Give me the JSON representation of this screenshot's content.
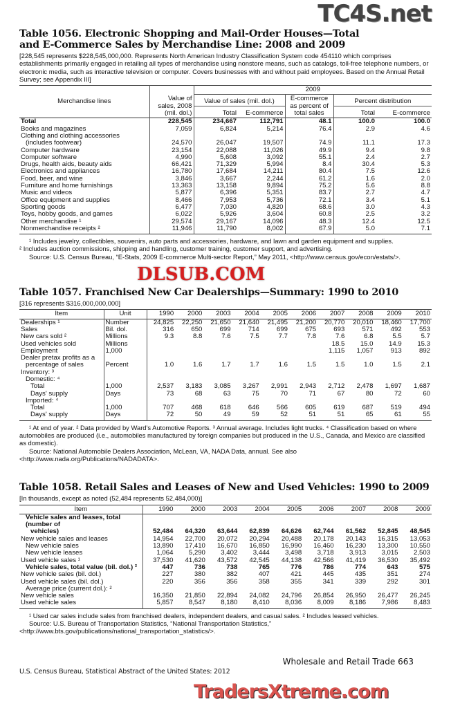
{
  "watermarks": {
    "top": "TC4S.net",
    "middle": "DLSUB.COM",
    "bottom": "TradersXtreme.com"
  },
  "t1056": {
    "title": "Table 1056. Electronic Shopping and Mail-Order Houses—Total and E-Commerce Sales by Merchandise Line: 2008 and 2009",
    "headnote": "[228,545 represents $228,545,000,000. Represents North American Industry Classification System code 454110 which comprises establishments primarily engaged in retailing all types of merchandise using nonstore means, such as catalogs, toll-free telephone numbers, or electronic media, such as interactive television or computer. Covers businesses with and without paid employees. Based on the Annual Retail Survey; see Appendix III]",
    "headers": {
      "lines": "Merchandise lines",
      "value2008": "Value of sales, 2008 (mil. dol.)",
      "year": "2009",
      "valueSales": "Value of sales (mil. dol.)",
      "ecomPct": "E-commerce as percent of total sales",
      "pctDist": "Percent distribution",
      "total": "Total",
      "ecom": "E-commerce",
      "total2": "Total",
      "ecom2": "E-commerce"
    },
    "rows": [
      {
        "label": "Total",
        "bold": true,
        "cells": [
          "228,545",
          "234,667",
          "112,791",
          "48.1",
          "100.0",
          "100.0"
        ]
      },
      {
        "label": "Books and magazines",
        "cells": [
          "7,059",
          "6,824",
          "5,214",
          "76.4",
          "2.9",
          "4.6"
        ]
      },
      {
        "label": "Clothing and clothing accessories",
        "nodots": true,
        "cells": []
      },
      {
        "label": "(includes footwear)",
        "indent": 1,
        "cells": [
          "24,570",
          "26,047",
          "19,507",
          "74.9",
          "11.1",
          "17.3"
        ]
      },
      {
        "label": "Computer hardware",
        "cells": [
          "23,154",
          "22,088",
          "11,026",
          "49.9",
          "9.4",
          "9.8"
        ]
      },
      {
        "label": "Computer software",
        "cells": [
          "4,990",
          "5,608",
          "3,092",
          "55.1",
          "2.4",
          "2.7"
        ]
      },
      {
        "label": "Drugs, health aids, beauty aids",
        "cells": [
          "66,421",
          "71,329",
          "5,994",
          "8.4",
          "30.4",
          "5.3"
        ]
      },
      {
        "label": "Electronics and appliances",
        "cells": [
          "16,780",
          "17,684",
          "14,211",
          "80.4",
          "7.5",
          "12.6"
        ]
      },
      {
        "label": "Food, beer, and wine",
        "cells": [
          "3,846",
          "3,667",
          "2,244",
          "61.2",
          "1.6",
          "2.0"
        ]
      },
      {
        "label": "Furniture and home furnishings",
        "cells": [
          "13,363",
          "13,158",
          "9,894",
          "75.2",
          "5.6",
          "8.8"
        ]
      },
      {
        "label": "Music and videos",
        "cells": [
          "5,877",
          "6,396",
          "5,351",
          "83.7",
          "2.7",
          "4.7"
        ]
      },
      {
        "label": "Office equipment and supplies",
        "cells": [
          "8,466",
          "7,953",
          "5,736",
          "72.1",
          "3.4",
          "5.1"
        ]
      },
      {
        "label": "Sporting goods",
        "cells": [
          "6,477",
          "7,030",
          "4,820",
          "68.6",
          "3.0",
          "4.3"
        ]
      },
      {
        "label": "Toys, hobby goods, and games",
        "cells": [
          "6,022",
          "5,926",
          "3,604",
          "60.8",
          "2.5",
          "3.2"
        ]
      },
      {
        "label": "Other merchandise ¹",
        "cells": [
          "29,574",
          "29,167",
          "14,096",
          "48.3",
          "12.4",
          "12.5"
        ]
      },
      {
        "label": "Nonmerchandise receipts ²",
        "cells": [
          "11,946",
          "11,790",
          "8,002",
          "67.9",
          "5.0",
          "7.1"
        ]
      }
    ],
    "footnotes": [
      "¹ Includes jewelry, collectibles, souvenirs, auto parts and accessories, hardware, and lawn and garden equipment and supplies.",
      "² Includes auction commissions, shipping and handling, customer training, customer support, and advertising.",
      "Source: U.S. Census Bureau, “E-Stats, 2009 E-commerce Multi-sector Report,” May 2011, <http://www.census.gov/econ/estats/>."
    ]
  },
  "t1057": {
    "title": "Table 1057. Franchised New Car Dealerships—Summary: 1990 to 2010",
    "headnote": "[316 represents $316,000,000,000]",
    "headers": {
      "item": "Item",
      "unit": "Unit",
      "years": [
        "1990",
        "2000",
        "2003",
        "2004",
        "2005",
        "2006",
        "2007",
        "2008",
        "2009",
        "2010"
      ]
    },
    "rows": [
      {
        "label": "Dealerships ¹",
        "unit": "Number",
        "cells": [
          "24,825",
          "22,250",
          "21,650",
          "21,640",
          "21,495",
          "21,200",
          "20,770",
          "20,010",
          "18,460",
          "17,700"
        ]
      },
      {
        "label": "Sales",
        "unit": "Bil. dol.",
        "cells": [
          "316",
          "650",
          "699",
          "714",
          "699",
          "675",
          "693",
          "571",
          "492",
          "553"
        ]
      },
      {
        "label": "New cars sold ²",
        "unit": "Millions",
        "cells": [
          "9.3",
          "8.8",
          "7.6",
          "7.5",
          "7.7",
          "7.8",
          "7.6",
          "6.8",
          "5.5",
          "5.7"
        ]
      },
      {
        "label": "Used vehicles sold",
        "unit": "Millions",
        "cells": [
          "",
          "",
          "",
          "",
          "",
          "",
          "18.5",
          "15.0",
          "14.9",
          "15.3"
        ]
      },
      {
        "label": "Employment",
        "unit": "1,000",
        "cells": [
          "",
          "",
          "",
          "",
          "",
          "",
          "1,115",
          "1,057",
          "913",
          "892"
        ]
      },
      {
        "label": "Dealer pretax profits as a",
        "nodots": true,
        "unit": "",
        "cells": []
      },
      {
        "label": "percentage of sales",
        "indent": 1,
        "unit": "Percent",
        "cells": [
          "1.0",
          "1.6",
          "1.7",
          "1.7",
          "1.6",
          "1.5",
          "1.5",
          "1.0",
          "1.5",
          "2.1"
        ]
      },
      {
        "label": "Inventory: ³",
        "nodots": true,
        "unit": "",
        "cells": []
      },
      {
        "label": "Domestic: ⁴",
        "nodots": true,
        "indent": 1,
        "unit": "",
        "cells": []
      },
      {
        "label": "Total",
        "indent": 2,
        "unit": "1,000",
        "cells": [
          "2,537",
          "3,183",
          "3,085",
          "3,267",
          "2,991",
          "2,943",
          "2,712",
          "2,478",
          "1,697",
          "1,687"
        ]
      },
      {
        "label": "Days' supply",
        "indent": 2,
        "unit": "Days",
        "cells": [
          "73",
          "68",
          "63",
          "75",
          "70",
          "71",
          "67",
          "80",
          "72",
          "60"
        ]
      },
      {
        "label": "Imported: ⁴",
        "nodots": true,
        "indent": 1,
        "unit": "",
        "cells": []
      },
      {
        "label": "Total",
        "indent": 2,
        "unit": "1,000",
        "cells": [
          "707",
          "468",
          "618",
          "646",
          "566",
          "605",
          "619",
          "687",
          "519",
          "494"
        ]
      },
      {
        "label": "Days' supply",
        "indent": 2,
        "unit": "Days",
        "cells": [
          "72",
          "50",
          "49",
          "59",
          "52",
          "51",
          "51",
          "65",
          "61",
          "55"
        ]
      }
    ],
    "footnotes": [
      "¹ At end of year. ² Data provided by Ward's Automotive Reports. ³ Annual average. Includes light trucks. ⁴ Classification based on where automobiles are produced (i.e., automobiles manufactured by foreign companies but produced in the U.S., Canada, and Mexico are classified as domestic).",
      "Source: National Automobile Dealers Association, McLean, VA, NADA Data, annual. See also <http://www.nada.org/Publications/NADADATA>."
    ]
  },
  "t1058": {
    "title": "Table 1058. Retail Sales and Leases of New and Used Vehicles: 1990 to 2009",
    "headnote": "[In thousands, except as noted (52,484 represents 52,484,000)]",
    "headers": {
      "item": "Item",
      "years": [
        "1990",
        "2000",
        "2003",
        "2004",
        "2005",
        "2006",
        "2007",
        "2008",
        "2009"
      ]
    },
    "rows": [
      {
        "label": "Vehicle sales and leases, total (number of",
        "bold": true,
        "nodots": true,
        "indent": 1,
        "cells": []
      },
      {
        "label": "vehicles)",
        "bold": true,
        "indent": 2,
        "cells": [
          "52,484",
          "64,320",
          "63,644",
          "62,839",
          "64,626",
          "62,744",
          "61,562",
          "52,845",
          "48,545"
        ]
      },
      {
        "label": "New vehicle sales and leases",
        "cells": [
          "14,954",
          "22,700",
          "20,072",
          "20,294",
          "20,488",
          "20,178",
          "20,143",
          "16,315",
          "13,053"
        ]
      },
      {
        "label": "New vehicle sales",
        "indent": 1,
        "cells": [
          "13,890",
          "17,410",
          "16,670",
          "16,850",
          "16,990",
          "16,460",
          "16,230",
          "13,300",
          "10,550"
        ]
      },
      {
        "label": "New vehicle leases",
        "indent": 1,
        "cells": [
          "1,064",
          "5,290",
          "3,402",
          "3,444",
          "3,498",
          "3,718",
          "3,913",
          "3,015",
          "2,503"
        ]
      },
      {
        "label": "Used vehicle sales ¹",
        "cells": [
          "37,530",
          "41,620",
          "43,572",
          "42,545",
          "44,138",
          "42,566",
          "41,419",
          "36,530",
          "35,492"
        ]
      },
      {
        "label": "Vehicle sales, total value (bil. dol.) ²",
        "bold": true,
        "indent": 1,
        "cells": [
          "447",
          "736",
          "738",
          "765",
          "776",
          "786",
          "774",
          "643",
          "575"
        ]
      },
      {
        "label": "New vehicle sales (bil. dol.)",
        "cells": [
          "227",
          "380",
          "382",
          "407",
          "421",
          "445",
          "435",
          "351",
          "274"
        ]
      },
      {
        "label": "Used vehicle sales (bil. dol.)",
        "cells": [
          "220",
          "356",
          "356",
          "358",
          "355",
          "341",
          "339",
          "292",
          "301"
        ]
      },
      {
        "label": "Average price (current dol.): ²",
        "nodots": true,
        "indent": 1,
        "cells": []
      },
      {
        "label": "New vehicle sales",
        "cells": [
          "16,350",
          "21,850",
          "22,894",
          "24,082",
          "24,796",
          "26,854",
          "26,950",
          "26,477",
          "26,245"
        ]
      },
      {
        "label": "Used vehicle sales",
        "cells": [
          "5,857",
          "8,547",
          "8,180",
          "8,410",
          "8,036",
          "8,009",
          "8,186",
          "7,986",
          "8,483"
        ]
      }
    ],
    "footnotes": [
      "¹ Used car sales include sales from franchised dealers, independent dealers, and casual sales. ² Includes leased vehicles.",
      "Source: U.S. Bureau of Transportation Statistics, “National Transportation Statistics,” <http://www.bts.gov/publications/national_transportation_statistics/>."
    ]
  },
  "footer": {
    "left": "U.S. Census Bureau, Statistical Abstract of the United States: 2012",
    "right": "Wholesale and Retail Trade  663"
  }
}
